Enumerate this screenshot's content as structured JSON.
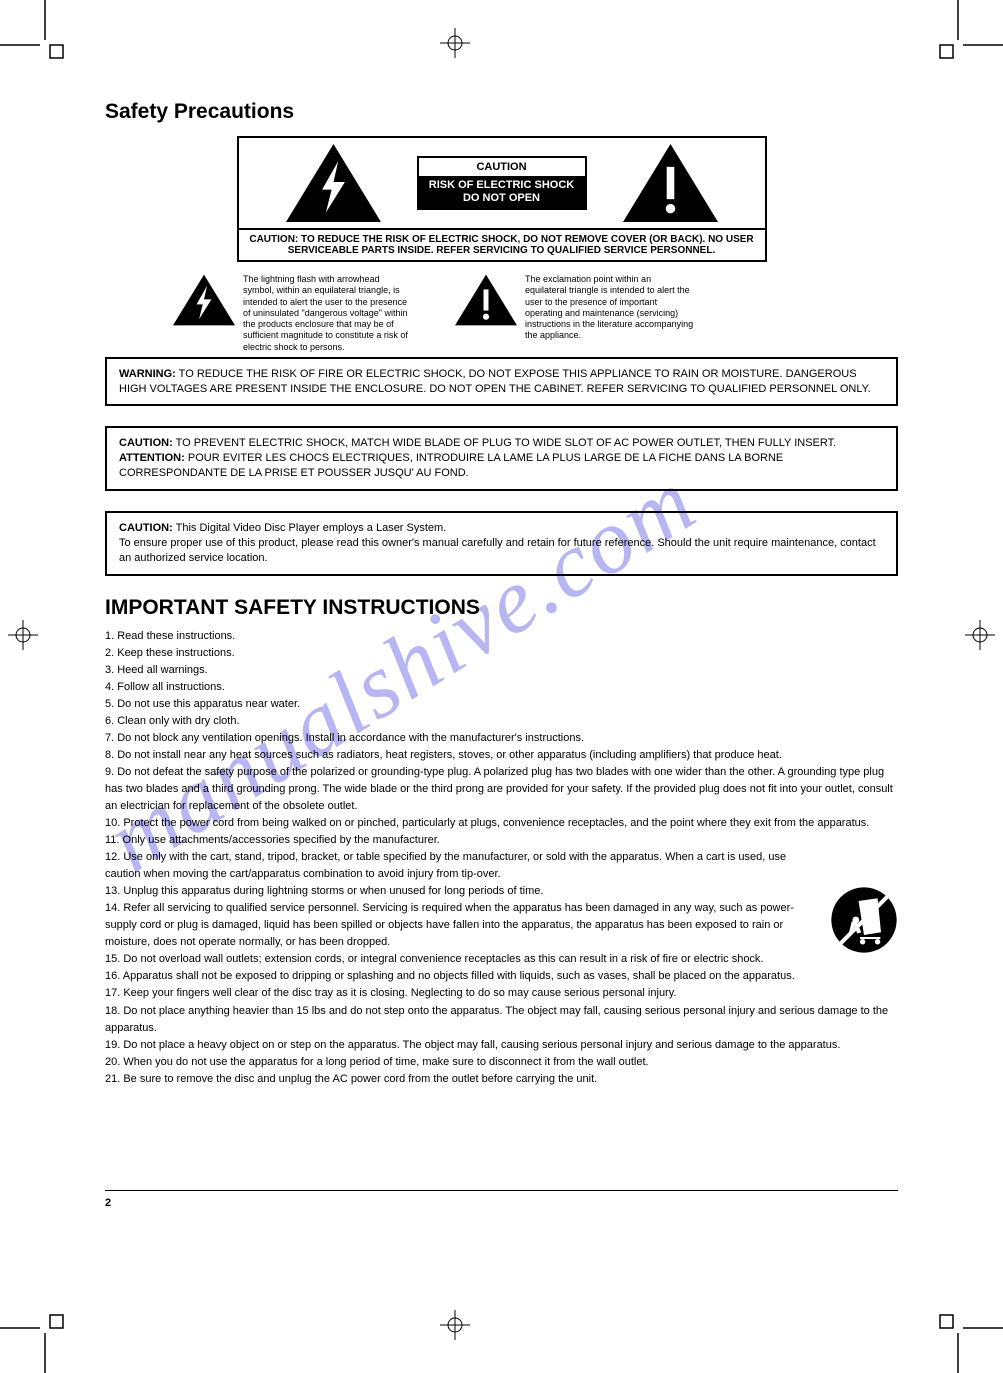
{
  "colors": {
    "text": "#000000",
    "background": "#ffffff",
    "watermark": "#9f9ef0",
    "border": "#000000"
  },
  "title": "Safety Precautions",
  "watermark": "manualshive.com",
  "caution_panel": {
    "top_text": "CAUTION",
    "bottom_text_line1": "RISK OF ELECTRIC SHOCK",
    "bottom_text_line2": "DO NOT OPEN",
    "footer": "CAUTION: TO REDUCE THE RISK OF ELECTRIC SHOCK, DO NOT REMOVE COVER (OR BACK). NO USER SERVICEABLE PARTS INSIDE. REFER SERVICING TO QUALIFIED SERVICE PERSONNEL."
  },
  "tri_explain": {
    "bolt": "The lightning flash with arrowhead symbol, within an equilateral triangle, is intended to alert the user to the presence of uninsulated \"dangerous voltage\" within the products enclosure that may be of sufficient magnitude to constitute a risk of electric shock to persons.",
    "excl": "The exclamation point within an equilateral triangle is intended to alert the user to the presence of important operating and maintenance (servicing) instructions in the literature accompanying the appliance."
  },
  "box1": {
    "label": "WARNING:",
    "text": " TO REDUCE THE RISK OF FIRE OR ELECTRIC SHOCK, DO NOT EXPOSE THIS APPLIANCE TO RAIN OR MOISTURE. DANGEROUS HIGH VOLTAGES ARE PRESENT INSIDE THE ENCLOSURE. DO NOT OPEN THE CABINET. REFER SERVICING TO QUALIFIED PERSONNEL ONLY."
  },
  "box2": {
    "label": "CAUTION:",
    "text": " TO PREVENT ELECTRIC SHOCK, MATCH WIDE BLADE OF PLUG TO WIDE SLOT OF AC POWER OUTLET, THEN FULLY INSERT."
  },
  "box2_fr": {
    "label": "ATTENTION:",
    "text": " POUR EVITER LES CHOCS ELECTRIQUES, INTRODUIRE LA LAME LA PLUS LARGE DE LA FICHE DANS LA BORNE CORRESPONDANTE DE LA PRISE ET POUSSER JUSQU' AU FOND."
  },
  "box3": {
    "label": "CAUTION:",
    "text": " This Digital Video Disc Player employs a Laser System.",
    "more": "To ensure proper use of this product, please read this owner's manual carefully and retain for future reference. Should the unit require maintenance, contact an authorized service location."
  },
  "important_title": "IMPORTANT SAFETY INSTRUCTIONS",
  "instructions": [
    "Read these instructions.",
    "Keep these instructions.",
    "Heed all warnings.",
    "Follow all instructions.",
    "Do not use this apparatus near water.",
    "Clean only with dry cloth.",
    "Do not block any ventilation openings. Install in accordance with the manufacturer's instructions.",
    "Do not install near any heat sources such as radiators, heat registers, stoves, or other apparatus (including amplifiers) that produce heat.",
    "Do not defeat the safety purpose of the polarized or grounding-type plug. A polarized plug has two blades with one wider than the other. A grounding type plug has two blades and a third grounding prong. The wide blade or the third prong are provided for your safety. If the provided plug does not fit into your outlet, consult an electrician for replacement of the obsolete outlet.",
    "Protect the power cord from being walked on or pinched, particularly at plugs, convenience receptacles, and the point where they exit from the apparatus.",
    "Only use attachments/accessories specified by the manufacturer.",
    "Use only with the cart, stand, tripod, bracket, or table specified by the manufacturer, or sold with the apparatus. When a cart is used, use caution when moving the cart/apparatus combination to avoid injury from tip-over.",
    "Unplug this apparatus during lightning storms or when unused for long periods of time.",
    "Refer all servicing to qualified service personnel. Servicing is required when the apparatus has been damaged in any way, such as power-supply cord or plug is damaged, liquid has been spilled or objects have fallen into the apparatus, the apparatus has been exposed to rain or moisture, does not operate normally, or has been dropped.",
    "Do not overload wall outlets; extension cords, or integral convenience receptacles as this can result in a risk of fire or electric shock.",
    "Apparatus shall not be exposed to dripping or splashing and no objects filled with liquids, such as vases, shall be placed on the apparatus.",
    "Keep your fingers well clear of the disc tray as it is closing. Neglecting to do so may cause serious personal injury.",
    "Do not place anything heavier than 15 lbs and do not step onto the apparatus. The object may fall, causing serious personal injury and serious damage to the apparatus.",
    "Do not place a heavy object on or step on the apparatus. The object may fall, causing serious personal injury and serious damage to the apparatus.",
    "When you do not use the apparatus for a long period of time, make sure to disconnect it from the wall outlet.",
    "Be sure to remove the disc and unplug the AC power cord from the outlet before carrying the unit."
  ],
  "page_number": "2"
}
